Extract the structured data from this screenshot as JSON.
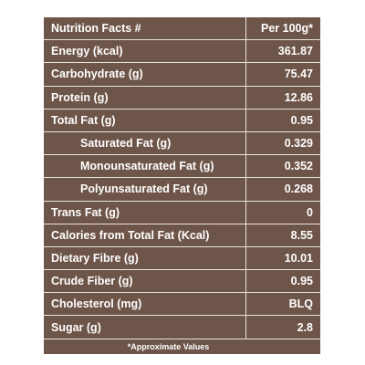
{
  "table": {
    "header": {
      "name": "Nutrition Facts #",
      "value": "Per 100g*"
    },
    "rows": [
      {
        "name": "Energy (kcal)",
        "value": "361.87",
        "indent": false
      },
      {
        "name": "Carbohydrate (g)",
        "value": "75.47",
        "indent": false
      },
      {
        "name": "Protein (g)",
        "value": "12.86",
        "indent": false
      },
      {
        "name": "Total Fat (g)",
        "value": "0.95",
        "indent": false
      },
      {
        "name": "Saturated Fat (g)",
        "value": "0.329",
        "indent": true
      },
      {
        "name": "Monounsaturated Fat (g)",
        "value": "0.352",
        "indent": true
      },
      {
        "name": "Polyunsaturated Fat (g)",
        "value": "0.268",
        "indent": true
      },
      {
        "name": "Trans Fat (g)",
        "value": "0",
        "indent": false
      },
      {
        "name": "Calories from Total Fat (Kcal)",
        "value": "8.55",
        "indent": false
      },
      {
        "name": "Dietary Fibre (g)",
        "value": "10.01",
        "indent": false
      },
      {
        "name": "Crude Fiber (g)",
        "value": "0.95",
        "indent": false
      },
      {
        "name": "Cholesterol (mg)",
        "value": "BLQ",
        "indent": false
      },
      {
        "name": "Sugar (g)",
        "value": "2.8",
        "indent": false
      }
    ],
    "footnote": "*Approximate Values"
  },
  "colors": {
    "table_background": "#6e5549",
    "grid_lines": "#e9e3df",
    "text": "#ffffff"
  }
}
